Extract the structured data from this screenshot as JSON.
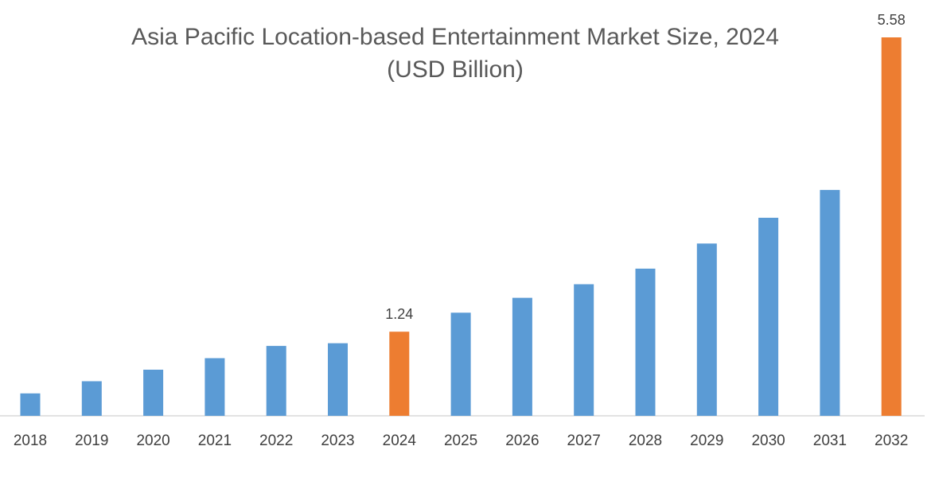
{
  "chart_data": {
    "type": "bar",
    "title": "Asia Pacific Location-based Entertainment Market Size, 2024",
    "subtitle": "(USD Billion)",
    "xlabel": "",
    "ylabel": "",
    "categories": [
      "2018",
      "2019",
      "2020",
      "2021",
      "2022",
      "2023",
      "2024",
      "2025",
      "2026",
      "2027",
      "2028",
      "2029",
      "2030",
      "2031",
      "2032"
    ],
    "values": [
      0.33,
      0.51,
      0.68,
      0.85,
      1.03,
      1.07,
      1.24,
      1.52,
      1.74,
      1.94,
      2.17,
      2.54,
      2.92,
      3.33,
      5.58
    ],
    "ylim": [
      0,
      5.58
    ],
    "grid": false,
    "legend": "none",
    "colors": {
      "default": "#5b9bd5",
      "highlight": "#ed7d31",
      "axis": "#d9d9d9"
    },
    "highlighted": [
      "2024",
      "2032"
    ],
    "data_labels": [
      {
        "category": "2024",
        "text": "1.24"
      },
      {
        "category": "2032",
        "text": "5.58"
      }
    ]
  }
}
